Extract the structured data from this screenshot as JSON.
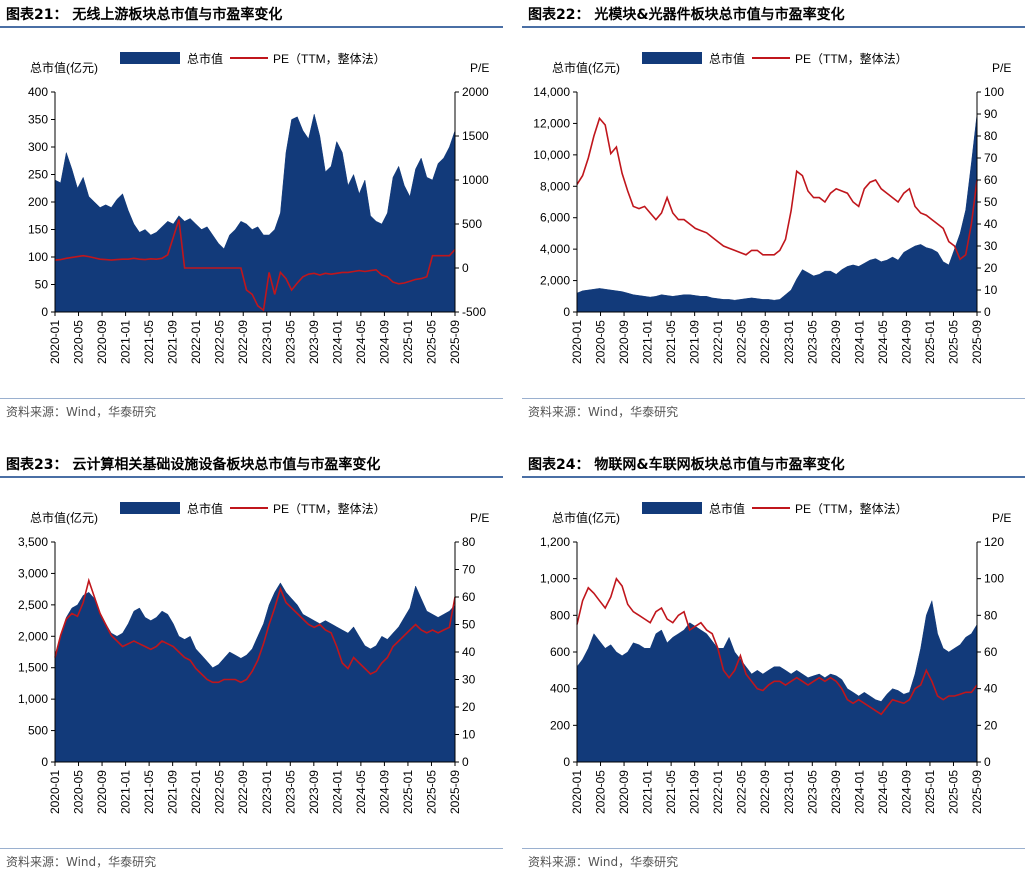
{
  "panels": [
    {
      "title": "图表21：  无线上游板块总市值与市盈率变化",
      "source": "资料来源：Wind，华泰研究",
      "chart_data": {
        "type": "area",
        "left_axis_label": "总市值(亿元)",
        "right_axis_label": "P/E",
        "legend": [
          "总市值",
          "PE（TTM，整体法）"
        ],
        "left_ylim": [
          0,
          400
        ],
        "left_ticks": [
          0,
          50,
          100,
          150,
          200,
          250,
          300,
          350,
          400
        ],
        "left_tick_labels": [
          "0",
          "50",
          "100",
          "150",
          "200",
          "250",
          "300",
          "350",
          "400"
        ],
        "right_ylim": [
          -500,
          2000
        ],
        "right_ticks": [
          -500,
          0,
          500,
          1000,
          1500,
          2000
        ],
        "right_tick_labels": [
          "-500",
          "0",
          "500",
          "1000",
          "1500",
          "2000"
        ],
        "x_labels": [
          "2020-01",
          "2020-05",
          "2020-09",
          "2021-01",
          "2021-05",
          "2021-09",
          "2022-01",
          "2022-05",
          "2022-09",
          "2023-01",
          "2023-05",
          "2023-09",
          "2024-01",
          "2024-05",
          "2024-09",
          "2025-01",
          "2025-05",
          "2025-09"
        ],
        "series": [
          {
            "name": "总市值",
            "axis": "left",
            "values": [
              240,
              235,
              290,
              260,
              225,
              245,
              210,
              200,
              190,
              195,
              190,
              205,
              215,
              185,
              160,
              145,
              150,
              140,
              145,
              155,
              165,
              160,
              175,
              165,
              170,
              160,
              150,
              155,
              140,
              125,
              115,
              140,
              150,
              165,
              160,
              150,
              155,
              140,
              140,
              150,
              180,
              290,
              350,
              355,
              330,
              315,
              360,
              320,
              255,
              265,
              310,
              290,
              230,
              250,
              215,
              240,
              175,
              165,
              160,
              180,
              245,
              265,
              230,
              210,
              260,
              280,
              245,
              240,
              270,
              280,
              300,
              330
            ]
          },
          {
            "name": "PE（TTM，整体法）",
            "axis": "right",
            "values": [
              90,
              95,
              110,
              120,
              130,
              140,
              130,
              115,
              100,
              95,
              90,
              95,
              100,
              100,
              110,
              100,
              95,
              105,
              100,
              110,
              150,
              350,
              550,
              0,
              0,
              0,
              0,
              0,
              0,
              0,
              0,
              0,
              0,
              0,
              -250,
              -300,
              -430,
              -480,
              -50,
              -300,
              -50,
              -120,
              -250,
              -170,
              -100,
              -70,
              -60,
              -80,
              -60,
              -70,
              -60,
              -50,
              -50,
              -40,
              -30,
              -40,
              -30,
              -20,
              -80,
              -100,
              -160,
              -180,
              -170,
              -150,
              -130,
              -120,
              -100,
              140,
              140,
              140,
              140,
              210
            ]
          }
        ]
      }
    },
    {
      "title": "图表22：  光模块&光器件板块总市值与市盈率变化",
      "source": "资料来源：Wind，华泰研究",
      "chart_data": {
        "type": "area",
        "left_axis_label": "总市值(亿元)",
        "right_axis_label": "P/E",
        "legend": [
          "总市值",
          "PE（TTM，整体法）"
        ],
        "left_ylim": [
          0,
          14000
        ],
        "left_ticks": [
          0,
          2000,
          4000,
          6000,
          8000,
          10000,
          12000,
          14000
        ],
        "left_tick_labels": [
          "0",
          "2,000",
          "4,000",
          "6,000",
          "8,000",
          "10,000",
          "12,000",
          "14,000"
        ],
        "right_ylim": [
          0,
          100
        ],
        "right_ticks": [
          0,
          10,
          20,
          30,
          40,
          50,
          60,
          70,
          80,
          90,
          100
        ],
        "right_tick_labels": [
          "0",
          "10",
          "20",
          "30",
          "40",
          "50",
          "60",
          "70",
          "80",
          "90",
          "100"
        ],
        "x_labels": [
          "2020-01",
          "2020-05",
          "2020-09",
          "2021-01",
          "2021-05",
          "2021-09",
          "2022-01",
          "2022-05",
          "2022-09",
          "2023-01",
          "2023-05",
          "2023-09",
          "2024-01",
          "2024-05",
          "2024-09",
          "2025-01",
          "2025-05",
          "2025-09"
        ],
        "series": [
          {
            "name": "总市值",
            "axis": "left",
            "values": [
              1200,
              1350,
              1400,
              1450,
              1500,
              1450,
              1400,
              1350,
              1300,
              1200,
              1100,
              1050,
              1000,
              950,
              1000,
              1100,
              1050,
              1000,
              1050,
              1100,
              1100,
              1050,
              1000,
              1000,
              900,
              850,
              800,
              800,
              750,
              800,
              850,
              900,
              850,
              800,
              800,
              750,
              800,
              1100,
              1400,
              2100,
              2700,
              2500,
              2300,
              2400,
              2600,
              2600,
              2400,
              2700,
              2900,
              3000,
              2900,
              3100,
              3300,
              3400,
              3200,
              3300,
              3500,
              3300,
              3800,
              4000,
              4200,
              4300,
              4100,
              4000,
              3800,
              3200,
              3000,
              4000,
              5000,
              6500,
              9500,
              12600
            ]
          },
          {
            "name": "PE（TTM，整体法）",
            "axis": "right",
            "values": [
              58,
              62,
              70,
              80,
              88,
              85,
              72,
              75,
              63,
              55,
              48,
              47,
              48,
              45,
              42,
              45,
              52,
              45,
              42,
              42,
              40,
              38,
              37,
              36,
              34,
              32,
              30,
              29,
              28,
              27,
              26,
              28,
              28,
              26,
              26,
              26,
              28,
              33,
              46,
              64,
              62,
              55,
              52,
              52,
              50,
              54,
              56,
              55,
              54,
              50,
              48,
              56,
              59,
              60,
              56,
              54,
              52,
              50,
              54,
              56,
              48,
              45,
              44,
              42,
              40,
              38,
              32,
              30,
              24,
              26,
              40,
              60
            ]
          }
        ]
      }
    },
    {
      "title": "图表23：  云计算相关基础设施设备板块总市值与市盈率变化",
      "source": "资料来源：Wind，华泰研究",
      "chart_data": {
        "type": "area",
        "left_axis_label": "总市值(亿元)",
        "right_axis_label": "P/E",
        "legend": [
          "总市值",
          "PE（TTM，整体法）"
        ],
        "left_ylim": [
          0,
          3500
        ],
        "left_ticks": [
          0,
          500,
          1000,
          1500,
          2000,
          2500,
          3000,
          3500
        ],
        "left_tick_labels": [
          "0",
          "500",
          "1,000",
          "1,500",
          "2,000",
          "2,500",
          "3,000",
          "3,500"
        ],
        "right_ylim": [
          0,
          80
        ],
        "right_ticks": [
          0,
          10,
          20,
          30,
          40,
          50,
          60,
          70,
          80
        ],
        "right_tick_labels": [
          "0",
          "10",
          "20",
          "30",
          "40",
          "50",
          "60",
          "70",
          "80"
        ],
        "x_labels": [
          "2020-01",
          "2020-05",
          "2020-09",
          "2021-01",
          "2021-05",
          "2021-09",
          "2022-01",
          "2022-05",
          "2022-09",
          "2023-01",
          "2023-05",
          "2023-09",
          "2024-01",
          "2024-05",
          "2024-09",
          "2025-01",
          "2025-05",
          "2025-09"
        ],
        "series": [
          {
            "name": "总市值",
            "axis": "left",
            "values": [
              1700,
              2000,
              2300,
              2450,
              2500,
              2650,
              2700,
              2600,
              2350,
              2200,
              2050,
              2000,
              2050,
              2200,
              2400,
              2450,
              2300,
              2250,
              2300,
              2400,
              2350,
              2200,
              2000,
              1950,
              2000,
              1800,
              1700,
              1600,
              1500,
              1550,
              1650,
              1750,
              1700,
              1650,
              1700,
              1800,
              2000,
              2200,
              2500,
              2700,
              2850,
              2700,
              2600,
              2500,
              2350,
              2300,
              2250,
              2200,
              2250,
              2200,
              2150,
              2100,
              2050,
              2150,
              2000,
              1850,
              1800,
              1850,
              2000,
              1950,
              2050,
              2150,
              2300,
              2450,
              2800,
              2600,
              2400,
              2350,
              2300,
              2350,
              2400,
              2500
            ]
          },
          {
            "name": "PE（TTM，整体法）",
            "axis": "right",
            "values": [
              38,
              46,
              52,
              54,
              53,
              58,
              66,
              60,
              54,
              50,
              46,
              44,
              42,
              43,
              44,
              43,
              42,
              41,
              42,
              44,
              43,
              42,
              40,
              38,
              37,
              34,
              32,
              30,
              29,
              29,
              30,
              30,
              30,
              29,
              30,
              33,
              37,
              43,
              50,
              56,
              63,
              58,
              56,
              54,
              52,
              50,
              49,
              50,
              48,
              47,
              42,
              36,
              34,
              38,
              36,
              34,
              32,
              33,
              36,
              38,
              42,
              44,
              46,
              48,
              50,
              48,
              47,
              48,
              47,
              48,
              49,
              60
            ]
          }
        ]
      }
    },
    {
      "title": "图表24：  物联网&车联网板块总市值与市盈率变化",
      "source": "资料来源：Wind，华泰研究",
      "chart_data": {
        "type": "area",
        "left_axis_label": "总市值(亿元)",
        "right_axis_label": "P/E",
        "legend": [
          "总市值",
          "PE（TTM，整体法）"
        ],
        "left_ylim": [
          0,
          1200
        ],
        "left_ticks": [
          0,
          200,
          400,
          600,
          800,
          1000,
          1200
        ],
        "left_tick_labels": [
          "0",
          "200",
          "400",
          "600",
          "800",
          "1,000",
          "1,200"
        ],
        "right_ylim": [
          0,
          120
        ],
        "right_ticks": [
          0,
          20,
          40,
          60,
          80,
          100,
          120
        ],
        "right_tick_labels": [
          "0",
          "20",
          "40",
          "60",
          "80",
          "100",
          "120"
        ],
        "x_labels": [
          "2020-01",
          "2020-05",
          "2020-09",
          "2021-01",
          "2021-05",
          "2021-09",
          "2022-01",
          "2022-05",
          "2022-09",
          "2023-01",
          "2023-05",
          "2023-09",
          "2024-01",
          "2024-05",
          "2024-09",
          "2025-01",
          "2025-05",
          "2025-09"
        ],
        "series": [
          {
            "name": "总市值",
            "axis": "left",
            "values": [
              520,
              560,
              620,
              700,
              660,
              620,
              640,
              600,
              580,
              600,
              650,
              640,
              620,
              620,
              700,
              720,
              650,
              680,
              700,
              720,
              760,
              740,
              720,
              700,
              660,
              620,
              620,
              680,
              600,
              560,
              520,
              480,
              500,
              480,
              500,
              520,
              520,
              500,
              480,
              500,
              480,
              460,
              470,
              480,
              460,
              480,
              470,
              450,
              400,
              380,
              360,
              380,
              360,
              340,
              330,
              370,
              400,
              390,
              370,
              380,
              480,
              620,
              800,
              880,
              700,
              620,
              600,
              620,
              640,
              680,
              700,
              750
            ]
          },
          {
            "name": "PE（TTM，整体法）",
            "axis": "right",
            "values": [
              75,
              88,
              95,
              92,
              88,
              84,
              90,
              100,
              96,
              86,
              82,
              80,
              78,
              76,
              82,
              84,
              78,
              76,
              80,
              82,
              72,
              74,
              76,
              72,
              70,
              62,
              50,
              46,
              50,
              58,
              48,
              44,
              40,
              39,
              42,
              44,
              44,
              42,
              44,
              46,
              44,
              42,
              44,
              46,
              44,
              46,
              44,
              40,
              34,
              32,
              34,
              32,
              30,
              28,
              26,
              30,
              34,
              33,
              32,
              34,
              40,
              42,
              50,
              44,
              36,
              34,
              36,
              36,
              37,
              38,
              38,
              42
            ]
          }
        ]
      }
    }
  ]
}
